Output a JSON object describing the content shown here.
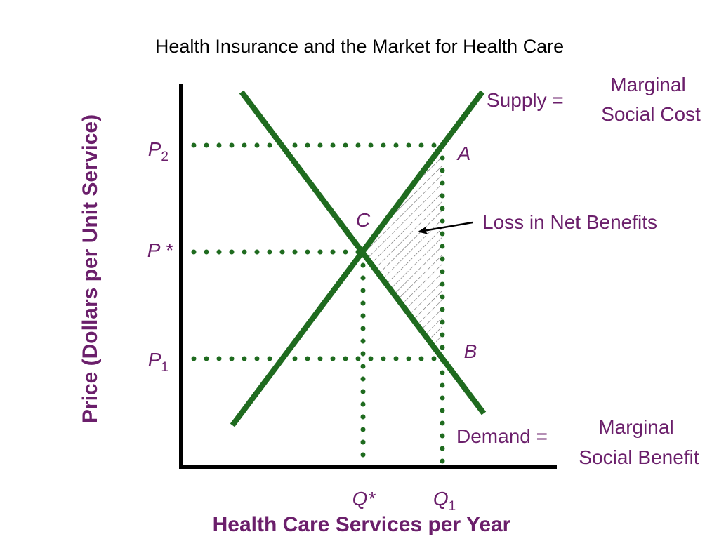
{
  "title": "Health Insurance and the Market for Health Care",
  "axes": {
    "y_title": "Price (Dollars per Unit Service)",
    "x_title": "Health Care Services per Year"
  },
  "price_labels": {
    "p2": {
      "base": "P",
      "sub": "2"
    },
    "pstar": {
      "base": "P *",
      "sub": ""
    },
    "p1": {
      "base": "P",
      "sub": "1"
    }
  },
  "quantity_labels": {
    "qstar": {
      "base": "Q*",
      "sub": ""
    },
    "q1": {
      "base": "Q",
      "sub": "1"
    }
  },
  "points": {
    "a": "A",
    "b": "B",
    "c": "C"
  },
  "supply": {
    "prefix": "Supply =",
    "line1": "Marginal",
    "line2": "Social Cost"
  },
  "demand": {
    "prefix": "Demand =",
    "line1": "Marginal",
    "line2": "Social Benefit"
  },
  "annotation": "Loss in Net Benefits",
  "colors": {
    "curve": "#1f6b1f",
    "dotted": "#1f6b1f",
    "axis": "#000000",
    "text_purple": "#6b1f6b",
    "hatch": "#666666"
  }
}
